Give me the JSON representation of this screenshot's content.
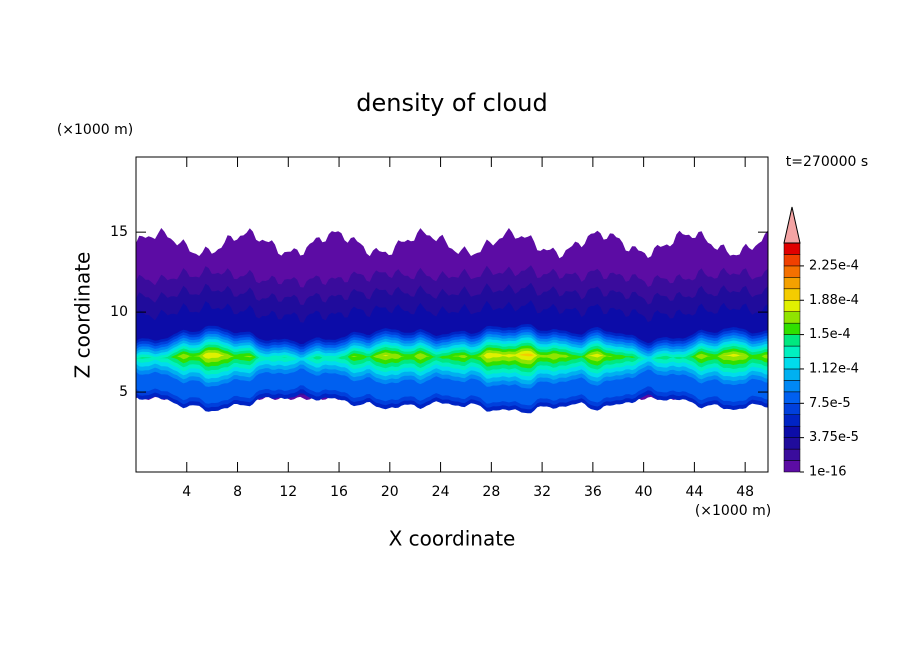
{
  "chart_data": {
    "type": "contour",
    "title": "density of cloud",
    "x_label": "X coordinate",
    "y_label": "Z coordinate",
    "x_unit": "(×1000 m)",
    "y_unit": "(×1000 m)",
    "time_label": "t=270000 s",
    "xlim": [
      0,
      49.8
    ],
    "ylim": [
      0,
      19.7
    ],
    "xticks": [
      4,
      8,
      12,
      16,
      20,
      24,
      28,
      32,
      36,
      40,
      44,
      48
    ],
    "yticks": [
      5,
      10,
      15
    ],
    "levels": [
      1e-16,
      1.25e-05,
      2.5e-05,
      3.75e-05,
      5e-05,
      6.25e-05,
      7.5e-05,
      8.75e-05,
      0.0001,
      0.0001125,
      0.000125,
      0.0001375,
      0.00015,
      0.0001625,
      0.000175,
      0.0001875,
      0.0002,
      0.0002125,
      0.000225,
      0.0002375,
      0.00025
    ],
    "colors": [
      "#5c0ca4",
      "#3a0c9c",
      "#200c9c",
      "#0c0ca8",
      "#0024c4",
      "#0040dc",
      "#0060f0",
      "#0088f4",
      "#00b0f0",
      "#00dcec",
      "#00f0c0",
      "#00e880",
      "#30e000",
      "#90e400",
      "#e0f000",
      "#f4cc00",
      "#f4a000",
      "#f47000",
      "#f04000",
      "#e00000"
    ],
    "over_color": "#f4a4a4",
    "colorbar_ticks": [
      {
        "value": 1e-16,
        "label": "1e-16"
      },
      {
        "value": 3.75e-05,
        "label": "3.75e-5"
      },
      {
        "value": 7.5e-05,
        "label": "7.5e-5"
      },
      {
        "value": 0.0001125,
        "label": "1.12e-4"
      },
      {
        "value": 0.00015,
        "label": "1.5e-4"
      },
      {
        "value": 0.0001875,
        "label": "1.88e-4"
      },
      {
        "value": 0.000225,
        "label": "2.25e-4"
      }
    ]
  }
}
